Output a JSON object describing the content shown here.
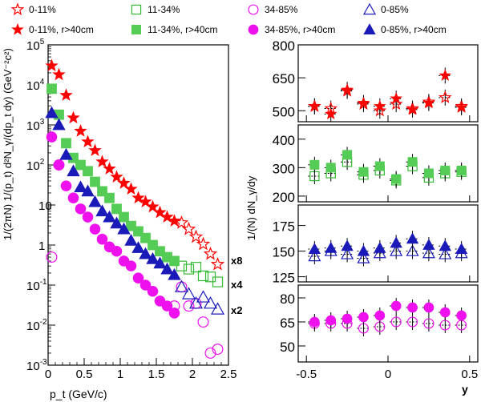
{
  "legend": [
    {
      "label": "0-11%",
      "color": "#ff0000",
      "marker": "star",
      "filled": false
    },
    {
      "label": "11-34%",
      "color": "#33bb33",
      "marker": "square",
      "filled": false
    },
    {
      "label": "34-85%",
      "color": "#ee11ee",
      "marker": "circle",
      "filled": false
    },
    {
      "label": "0-85%",
      "color": "#1a1ab8",
      "marker": "triangle",
      "filled": false
    },
    {
      "label": "0-11%, r>40cm",
      "color": "#ff0000",
      "marker": "star",
      "filled": true
    },
    {
      "label": "11-34%, r>40cm",
      "color": "#55cc55",
      "marker": "square",
      "filled": true
    },
    {
      "label": "34-85%, r>40cm",
      "color": "#ee11ee",
      "marker": "circle",
      "filled": true
    },
    {
      "label": "0-85%, r>40cm",
      "color": "#1a1ab8",
      "marker": "triangle",
      "filled": true
    }
  ],
  "chart_data": [
    {
      "type": "scatter",
      "xlabel": "p_t (GeV/c)",
      "ylabel": "1/(2πN) 1/(p_t) d²N_γ/(dp_t dy) (GeV⁻²c²)",
      "xlim": [
        0,
        2.5
      ],
      "ylim_log10": [
        -3,
        5
      ],
      "xticks": [
        "0",
        "0.5",
        "1",
        "1.5",
        "2",
        "2.5"
      ],
      "yticks": [
        "10^-3",
        "10^-2",
        "10^-1",
        "1",
        "10",
        "10^2",
        "10^3",
        "10^4",
        "10^5"
      ],
      "scale_labels": [
        "x8",
        "x4",
        "x2"
      ],
      "series": [
        {
          "name": "0-11%",
          "x": [
            1.85,
            1.95,
            2.05,
            2.15,
            2.25,
            2.35
          ],
          "y": [
            3.6,
            2.5,
            1.6,
            1.05,
            0.6,
            0.33
          ]
        },
        {
          "name": "0-11%, r>40cm",
          "x": [
            0.05,
            0.15,
            0.25,
            0.35,
            0.45,
            0.55,
            0.65,
            0.75,
            0.85,
            0.95,
            1.05,
            1.15,
            1.25,
            1.35,
            1.45,
            1.55,
            1.65,
            1.75
          ],
          "y": [
            30000,
            18000,
            5500,
            1500,
            700,
            380,
            230,
            120,
            80,
            50,
            35,
            25,
            15,
            12,
            9,
            6.5,
            5,
            4
          ]
        },
        {
          "name": "11-34%",
          "x": [
            1.85,
            1.95,
            2.05,
            2.15,
            2.25,
            2.35
          ],
          "y": [
            0.3,
            0.25,
            0.28,
            0.17,
            0.16,
            0.12
          ]
        },
        {
          "name": "11-34%, r>40cm",
          "x": [
            0.05,
            0.15,
            0.25,
            0.35,
            0.45,
            0.55,
            0.65,
            0.75,
            0.85,
            0.95,
            1.05,
            1.15,
            1.25,
            1.35,
            1.45,
            1.55,
            1.65,
            1.75
          ],
          "y": [
            8000,
            1800,
            350,
            150,
            100,
            70,
            38,
            22,
            15,
            8,
            5,
            3,
            2.2,
            1.5,
            1.0,
            0.7,
            0.5,
            0.4
          ]
        },
        {
          "name": "34-85%",
          "x": [
            0.05,
            0.15,
            1.75,
            1.85,
            1.95,
            2.05,
            2.15,
            2.25,
            2.35
          ],
          "y": [
            0.5,
            100,
            0.03,
            0.09,
            0.03,
            0.035,
            0.012,
            0.002,
            0.0025
          ]
        },
        {
          "name": "34-85%, r>40cm",
          "x": [
            0.05,
            0.15,
            0.25,
            0.35,
            0.45,
            0.55,
            0.65,
            0.75,
            0.85,
            0.95,
            1.05,
            1.15,
            1.25,
            1.35,
            1.45,
            1.55,
            1.65,
            1.75
          ],
          "y": [
            500,
            100,
            30,
            15,
            8,
            5,
            2.5,
            1.4,
            0.9,
            0.7,
            0.4,
            0.3,
            0.15,
            0.1,
            0.07,
            0.04,
            0.03,
            0.02
          ]
        },
        {
          "name": "0-85%",
          "x": [
            1.85,
            1.95,
            2.05,
            2.15,
            2.25,
            2.35
          ],
          "y": [
            0.09,
            0.06,
            0.035,
            0.05,
            0.035,
            0.025
          ]
        },
        {
          "name": "0-85%, r>40cm",
          "x": [
            0.05,
            0.15,
            0.25,
            0.35,
            0.45,
            0.55,
            0.65,
            0.75,
            0.85,
            0.95,
            1.05,
            1.15,
            1.25,
            1.35,
            1.45,
            1.55,
            1.65,
            1.75
          ],
          "y": [
            2000,
            1000,
            180,
            70,
            28,
            22,
            12,
            7,
            5,
            3.5,
            2.5,
            1.3,
            0.85,
            0.6,
            0.45,
            0.35,
            0.25,
            0.18
          ]
        }
      ]
    },
    {
      "type": "scatter",
      "xlabel": "y",
      "ylabel": "1/(N) dN_γ/dy",
      "xlim": [
        -0.55,
        0.55
      ],
      "xticks": [
        "-0.5",
        "0",
        "0.5"
      ],
      "panels": [
        {
          "ylim": [
            450,
            800
          ],
          "yticks": [
            "500",
            "650",
            "800"
          ],
          "series": [
            {
              "name": "0-11%",
              "x": [
                -0.45,
                -0.35,
                -0.25,
                -0.15,
                -0.05,
                0.05,
                0.15,
                0.25,
                0.35,
                0.45
              ],
              "y": [
                520,
                510,
                590,
                530,
                500,
                530,
                510,
                540,
                560,
                520
              ]
            },
            {
              "name": "0-11%, r>40cm",
              "x": [
                -0.45,
                -0.35,
                -0.25,
                -0.15,
                -0.05,
                0.05,
                0.15,
                0.25,
                0.35,
                0.45
              ],
              "y": [
                520,
                485,
                595,
                535,
                520,
                555,
                505,
                535,
                660,
                515
              ]
            }
          ]
        },
        {
          "ylim": [
            180,
            450
          ],
          "yticks": [
            "200",
            "300",
            "400"
          ],
          "series": [
            {
              "name": "11-34%",
              "x": [
                -0.45,
                -0.35,
                -0.25,
                -0.15,
                -0.05,
                0.05,
                0.15,
                0.25,
                0.35,
                0.45
              ],
              "y": [
                270,
                280,
                320,
                275,
                290,
                255,
                305,
                265,
                280,
                285
              ]
            },
            {
              "name": "11-34%, r>40cm",
              "x": [
                -0.45,
                -0.35,
                -0.25,
                -0.15,
                -0.05,
                0.05,
                0.15,
                0.25,
                0.35,
                0.45
              ],
              "y": [
                310,
                300,
                345,
                285,
                305,
                260,
                320,
                280,
                290,
                290
              ]
            }
          ]
        },
        {
          "ylim": [
            120,
            195
          ],
          "yticks": [
            "125",
            "150",
            "175"
          ],
          "series": [
            {
              "name": "0-85%",
              "x": [
                -0.45,
                -0.35,
                -0.25,
                -0.15,
                -0.05,
                0.05,
                0.15,
                0.25,
                0.35,
                0.45
              ],
              "y": [
                145,
                150,
                147,
                143,
                148,
                150,
                150,
                148,
                147,
                148
              ]
            },
            {
              "name": "0-85%, r>40cm",
              "x": [
                -0.45,
                -0.35,
                -0.25,
                -0.15,
                -0.05,
                0.05,
                0.15,
                0.25,
                0.35,
                0.45
              ],
              "y": [
                152,
                153,
                155,
                150,
                153,
                158,
                162,
                156,
                155,
                152
              ]
            }
          ]
        },
        {
          "ylim": [
            40,
            88
          ],
          "yticks": [
            "50",
            "65",
            "80"
          ],
          "series": [
            {
              "name": "34-85%",
              "x": [
                -0.45,
                -0.35,
                -0.25,
                -0.15,
                -0.05,
                0.05,
                0.15,
                0.25,
                0.35,
                0.45
              ],
              "y": [
                64,
                64,
                64,
                61,
                62,
                65,
                65,
                64,
                63,
                63
              ]
            },
            {
              "name": "34-85%, r>40cm",
              "x": [
                -0.45,
                -0.35,
                -0.25,
                -0.15,
                -0.05,
                0.05,
                0.15,
                0.25,
                0.35,
                0.45
              ],
              "y": [
                65,
                66,
                67,
                68,
                69,
                75,
                74,
                74,
                71,
                69
              ]
            }
          ]
        }
      ]
    }
  ]
}
